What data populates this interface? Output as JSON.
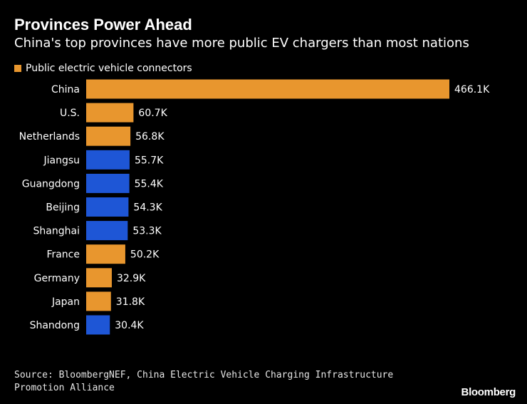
{
  "colors": {
    "background": "#000000",
    "country": "#e8962e",
    "province": "#1e56d6",
    "text": "#ffffff"
  },
  "chart_data": {
    "type": "bar",
    "orientation": "horizontal",
    "title": "Provinces Power Ahead",
    "subtitle": "China's top provinces have more public EV chargers than most nations",
    "legend": [
      {
        "label": "Public electric vehicle connectors",
        "color": "#e8962e"
      }
    ],
    "categories": [
      "China",
      "U.S.",
      "Netherlands",
      "Jiangsu",
      "Guangdong",
      "Beijing",
      "Shanghai",
      "France",
      "Germany",
      "Japan",
      "Shandong"
    ],
    "values": [
      466.1,
      60.7,
      56.8,
      55.7,
      55.4,
      54.3,
      53.3,
      50.2,
      32.9,
      31.8,
      30.4
    ],
    "value_labels": [
      "466.1K",
      "60.7K",
      "56.8K",
      "55.7K",
      "55.4K",
      "54.3K",
      "53.3K",
      "50.2K",
      "32.9K",
      "31.8K",
      "30.4K"
    ],
    "kinds": [
      "country",
      "country",
      "country",
      "province",
      "province",
      "province",
      "province",
      "country",
      "country",
      "country",
      "province"
    ],
    "unit": "thousand connectors",
    "xlim": [
      0,
      466.1
    ],
    "grid": false,
    "legend_position": "top-left"
  },
  "source": "Source: BloombergNEF, China Electric Vehicle Charging Infrastructure Promotion Alliance",
  "brand": "Bloomberg"
}
